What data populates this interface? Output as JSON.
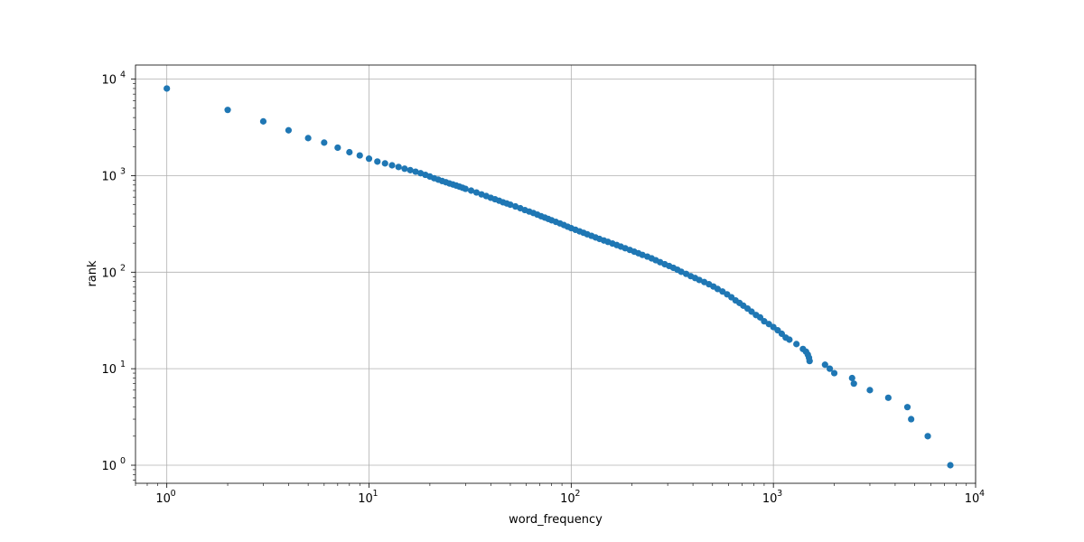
{
  "chart_data": {
    "type": "scatter",
    "title": "",
    "xlabel": "word_frequency",
    "ylabel": "rank",
    "xscale": "log",
    "yscale": "log",
    "xlim": [
      0.7,
      10000
    ],
    "ylim": [
      0.65,
      14000
    ],
    "grid": true,
    "legend": "none",
    "marker_color": "#1f77b4",
    "x_ticks": [
      {
        "base": "10",
        "exp": "0",
        "value": 1
      },
      {
        "base": "10",
        "exp": "1",
        "value": 10
      },
      {
        "base": "10",
        "exp": "2",
        "value": 100
      },
      {
        "base": "10",
        "exp": "3",
        "value": 1000
      },
      {
        "base": "10",
        "exp": "4",
        "value": 10000
      }
    ],
    "y_ticks": [
      {
        "base": "10",
        "exp": "0",
        "value": 1
      },
      {
        "base": "10",
        "exp": "1",
        "value": 10
      },
      {
        "base": "10",
        "exp": "2",
        "value": 100
      },
      {
        "base": "10",
        "exp": "3",
        "value": 1000
      },
      {
        "base": "10",
        "exp": "4",
        "value": 10000
      }
    ],
    "points": [
      [
        1,
        8000
      ],
      [
        2,
        4800
      ],
      [
        3,
        3650
      ],
      [
        4,
        2950
      ],
      [
        5,
        2450
      ],
      [
        6,
        2200
      ],
      [
        7,
        1950
      ],
      [
        8,
        1750
      ],
      [
        9,
        1620
      ],
      [
        10,
        1500
      ],
      [
        11,
        1400
      ],
      [
        12,
        1340
      ],
      [
        13,
        1280
      ],
      [
        14,
        1230
      ],
      [
        15,
        1180
      ],
      [
        16,
        1140
      ],
      [
        17,
        1100
      ],
      [
        18,
        1060
      ],
      [
        19,
        1020
      ],
      [
        20,
        980
      ],
      [
        21,
        940
      ],
      [
        22,
        910
      ],
      [
        23,
        880
      ],
      [
        24,
        855
      ],
      [
        25,
        830
      ],
      [
        26,
        810
      ],
      [
        27,
        790
      ],
      [
        28,
        770
      ],
      [
        29,
        750
      ],
      [
        30,
        730
      ],
      [
        32,
        700
      ],
      [
        34,
        670
      ],
      [
        36,
        640
      ],
      [
        38,
        615
      ],
      [
        40,
        590
      ],
      [
        42,
        570
      ],
      [
        44,
        550
      ],
      [
        46,
        530
      ],
      [
        48,
        515
      ],
      [
        50,
        500
      ],
      [
        53,
        480
      ],
      [
        56,
        460
      ],
      [
        59,
        440
      ],
      [
        62,
        425
      ],
      [
        65,
        410
      ],
      [
        68,
        395
      ],
      [
        71,
        380
      ],
      [
        74,
        368
      ],
      [
        77,
        356
      ],
      [
        80,
        345
      ],
      [
        84,
        332
      ],
      [
        88,
        320
      ],
      [
        92,
        308
      ],
      [
        96,
        296
      ],
      [
        100,
        286
      ],
      [
        105,
        275
      ],
      [
        110,
        265
      ],
      [
        115,
        256
      ],
      [
        120,
        247
      ],
      [
        126,
        238
      ],
      [
        132,
        229
      ],
      [
        138,
        221
      ],
      [
        145,
        213
      ],
      [
        152,
        206
      ],
      [
        160,
        198
      ],
      [
        168,
        191
      ],
      [
        176,
        184
      ],
      [
        185,
        177
      ],
      [
        195,
        170
      ],
      [
        205,
        163
      ],
      [
        215,
        157
      ],
      [
        225,
        151
      ],
      [
        238,
        145
      ],
      [
        250,
        139
      ],
      [
        262,
        133
      ],
      [
        275,
        127
      ],
      [
        290,
        121
      ],
      [
        305,
        116
      ],
      [
        320,
        111
      ],
      [
        335,
        106
      ],
      [
        350,
        101
      ],
      [
        370,
        96
      ],
      [
        390,
        91
      ],
      [
        410,
        87
      ],
      [
        430,
        83
      ],
      [
        455,
        79
      ],
      [
        480,
        75
      ],
      [
        505,
        71
      ],
      [
        530,
        67
      ],
      [
        560,
        63
      ],
      [
        590,
        59
      ],
      [
        620,
        55
      ],
      [
        650,
        51
      ],
      [
        680,
        48
      ],
      [
        710,
        45
      ],
      [
        745,
        42
      ],
      [
        780,
        39
      ],
      [
        820,
        36
      ],
      [
        860,
        34
      ],
      [
        900,
        31
      ],
      [
        950,
        29
      ],
      [
        1000,
        27
      ],
      [
        1050,
        25
      ],
      [
        1100,
        23
      ],
      [
        1150,
        21
      ],
      [
        1200,
        20
      ],
      [
        1300,
        18
      ],
      [
        1400,
        16
      ],
      [
        1450,
        15
      ],
      [
        1480,
        14
      ],
      [
        1500,
        13
      ],
      [
        1510,
        12
      ],
      [
        1800,
        11
      ],
      [
        1900,
        10
      ],
      [
        2000,
        9
      ],
      [
        2450,
        8
      ],
      [
        2500,
        7
      ],
      [
        3000,
        6
      ],
      [
        3700,
        5
      ],
      [
        4600,
        4
      ],
      [
        4800,
        3
      ],
      [
        5800,
        2
      ],
      [
        7500,
        1
      ]
    ]
  }
}
